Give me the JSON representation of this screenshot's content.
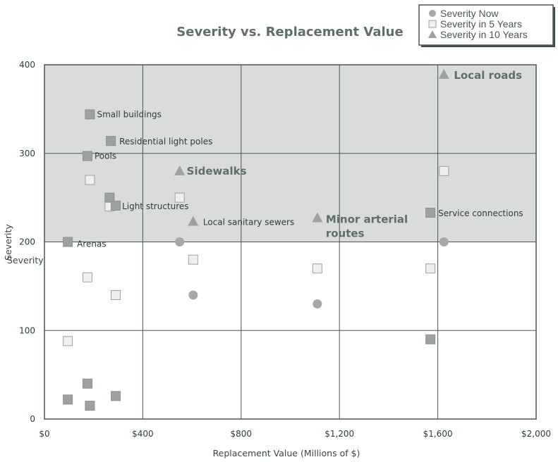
{
  "chart_data": {
    "type": "scatter",
    "title": "Severity vs. Replacement Value",
    "xlabel": "Replacement Value (Millions of $)",
    "ylabel": "Severity",
    "ylabel_overlay": "Severity",
    "xlim": [
      0,
      2000
    ],
    "ylim": [
      0,
      400
    ],
    "x_ticks": [
      {
        "value": 0,
        "label": "$0"
      },
      {
        "value": 400,
        "label": "$400"
      },
      {
        "value": 800,
        "label": "$800"
      },
      {
        "value": 1200,
        "label": "$1,200"
      },
      {
        "value": 1600,
        "label": "$1,600"
      },
      {
        "value": 2000,
        "label": "$2,000"
      }
    ],
    "y_ticks": [
      {
        "value": 0,
        "label": "0"
      },
      {
        "value": 100,
        "label": "100"
      },
      {
        "value": 200,
        "label": "200"
      },
      {
        "value": 300,
        "label": "300"
      },
      {
        "value": 400,
        "label": "400"
      }
    ],
    "grid": true,
    "shaded_band": {
      "y_from": 200,
      "y_to": 400
    },
    "legend_position": "top-right",
    "series": [
      {
        "name": "Severity Now",
        "marker": "circle",
        "color": "#a6a9a7",
        "points": [
          {
            "x": 95,
            "y": 22
          },
          {
            "x": 175,
            "y": 40
          },
          {
            "x": 185,
            "y": 15
          },
          {
            "x": 290,
            "y": 26
          },
          {
            "x": 550,
            "y": 200
          },
          {
            "x": 605,
            "y": 140
          },
          {
            "x": 1110,
            "y": 130
          },
          {
            "x": 1570,
            "y": 90
          },
          {
            "x": 1625,
            "y": 200
          }
        ]
      },
      {
        "name": "Severity in 5 Years",
        "marker": "square",
        "color": "#efefef",
        "points": [
          {
            "x": 95,
            "y": 88
          },
          {
            "x": 175,
            "y": 160
          },
          {
            "x": 185,
            "y": 270
          },
          {
            "x": 290,
            "y": 140
          },
          {
            "x": 550,
            "y": 250
          },
          {
            "x": 605,
            "y": 180
          },
          {
            "x": 1110,
            "y": 170
          },
          {
            "x": 1570,
            "y": 170
          },
          {
            "x": 1625,
            "y": 280
          },
          {
            "x": 265,
            "y": 240
          }
        ]
      },
      {
        "name": "Severity in 10 Years",
        "marker": "triangle",
        "color": "#9ea29f",
        "points": [
          {
            "x": 550,
            "y": 280
          },
          {
            "x": 605,
            "y": 223
          },
          {
            "x": 1110,
            "y": 227
          },
          {
            "x": 1625,
            "y": 389
          }
        ]
      }
    ],
    "filled_squares": [
      {
        "x": 95,
        "y": 22
      },
      {
        "x": 175,
        "y": 40
      },
      {
        "x": 185,
        "y": 15
      },
      {
        "x": 290,
        "y": 26
      },
      {
        "x": 95,
        "y": 200
      },
      {
        "x": 175,
        "y": 297
      },
      {
        "x": 185,
        "y": 344
      },
      {
        "x": 265,
        "y": 250
      },
      {
        "x": 270,
        "y": 314
      },
      {
        "x": 290,
        "y": 241
      },
      {
        "x": 1570,
        "y": 233
      },
      {
        "x": 1570,
        "y": 90
      }
    ],
    "annotations": [
      {
        "text": "Small buildings",
        "x": 185,
        "y": 344,
        "style": "small"
      },
      {
        "text": "Residential light poles",
        "x": 270,
        "y": 314,
        "style": "small"
      },
      {
        "text": "Pools",
        "x": 175,
        "y": 297,
        "style": "small"
      },
      {
        "text": "Light structures",
        "x": 290,
        "y": 241,
        "style": "small"
      },
      {
        "text": "Local sanitary sewers",
        "x": 605,
        "y": 223,
        "style": "small"
      },
      {
        "text": "Arenas",
        "x": 95,
        "y": 200,
        "style": "small"
      },
      {
        "text": "Service connections",
        "x": 1570,
        "y": 233,
        "style": "small"
      },
      {
        "text": "Sidewalks",
        "x": 550,
        "y": 280,
        "style": "big"
      },
      {
        "text": "Local roads",
        "x": 1625,
        "y": 389,
        "style": "big"
      },
      {
        "text": "Minor arterial",
        "x": 1110,
        "y": 227,
        "style": "big"
      },
      {
        "text": "routes",
        "x": 1110,
        "y": 227,
        "style": "big"
      }
    ]
  },
  "colors": {
    "band": "#d9dcd9",
    "grid": "#4a5752",
    "filled_square": "#9ea29f",
    "square_border": "#9ea29f"
  }
}
